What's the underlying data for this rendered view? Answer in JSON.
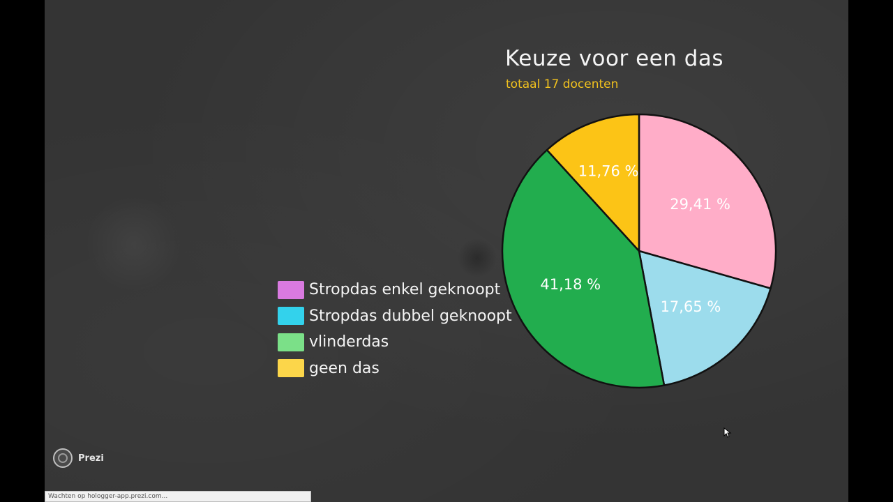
{
  "title": "Keuze voor een das",
  "subtitle": "totaal  17 docenten",
  "brand": "Prezi",
  "status_text": "Wachten op hologger-app.prezi.com...",
  "chart_data": {
    "type": "pie",
    "title": "Keuze voor een das",
    "subtitle": "totaal  17 docenten",
    "slices": [
      {
        "legend": "Stropdas enkel geknoopt",
        "value": 29.41,
        "label": "29,41 %",
        "color": "#ffadc8",
        "legend_color": "#d97ae0"
      },
      {
        "legend": "Stropdas dubbel geknoopt",
        "value": 17.65,
        "label": "17,65 %",
        "color": "#9cdcec",
        "legend_color": "#33d2ec"
      },
      {
        "legend": "vlinderdas",
        "value": 41.18,
        "label": "41,18 %",
        "color": "#22ad4e",
        "legend_color": "#7be088"
      },
      {
        "legend": "geen das",
        "value": 11.76,
        "label": "11,76 %",
        "color": "#fcc416",
        "legend_color": "#fcd64a"
      }
    ],
    "start_angle_deg": 0,
    "direction": "clockwise",
    "legend_position": "left"
  }
}
